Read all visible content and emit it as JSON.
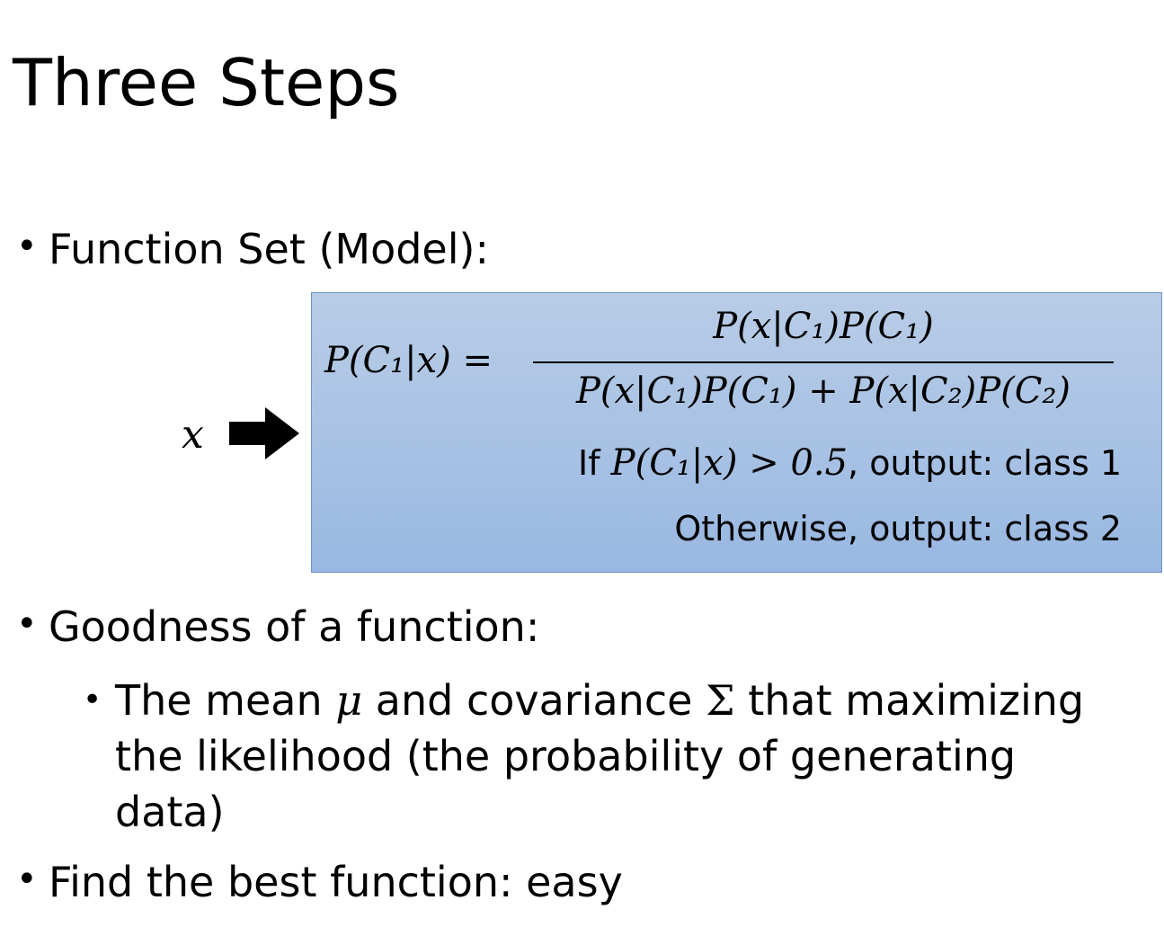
{
  "slide": {
    "title": "Three Steps"
  },
  "bullets": {
    "function_set": {
      "marker": "•",
      "label": "Function Set (Model):"
    },
    "goodness": {
      "marker": "•",
      "label": "Goodness of a function:",
      "sub_marker": "•",
      "sub_part1": "The mean ",
      "sub_mu": "μ",
      "sub_part2": " and covariance ",
      "sub_sigma": "Σ",
      "sub_part3": " that maximizing the likelihood (the probability of generating data)"
    },
    "find_best": {
      "marker": "•",
      "label": "Find the best function: easy"
    }
  },
  "model": {
    "input_symbol": "x",
    "arrow_icon": "right-arrow-icon",
    "lhs": "P(C₁|x) =",
    "numerator": "P(x|C₁)P(C₁)",
    "denominator": "P(x|C₁)P(C₁) + P(x|C₂)P(C₂)",
    "rule1_prefix": "If ",
    "rule1_expr": "P(C₁|x) > 0.5",
    "rule1_suffix": ", output: class 1",
    "rule2": "Otherwise, output: class 2"
  },
  "colors": {
    "box_fill": "#a8c2e4",
    "box_border": "#6f95c7",
    "text": "#000000"
  }
}
